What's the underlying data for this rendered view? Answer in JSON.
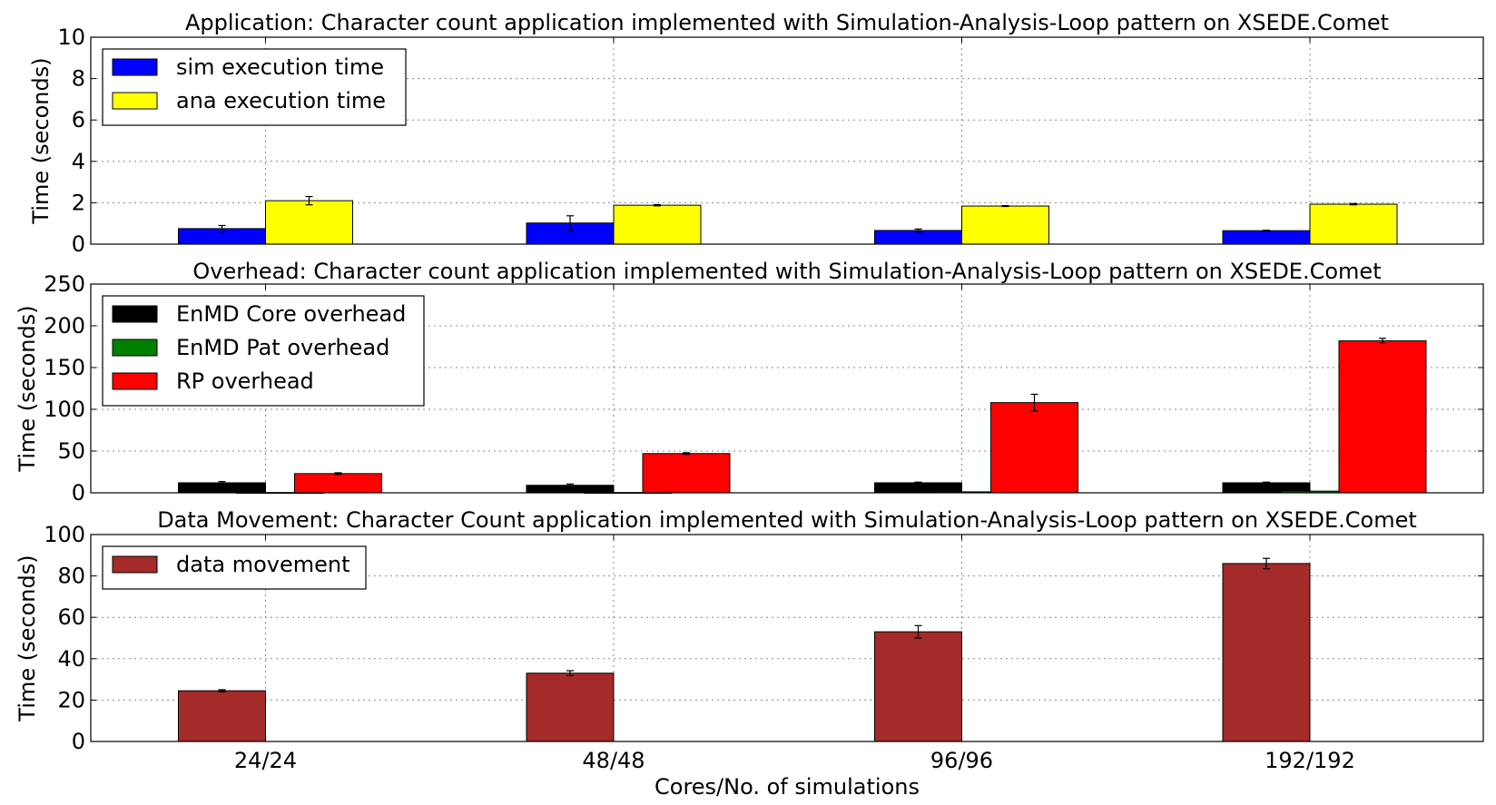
{
  "chart_data": [
    {
      "type": "bar",
      "title": "Application: Character count application implemented with Simulation-Analysis-Loop pattern on XSEDE.Comet",
      "xlabel": "",
      "ylabel": "Time (seconds)",
      "ylim": [
        0,
        10
      ],
      "yticks": [
        0,
        2,
        4,
        6,
        8,
        10
      ],
      "grid": true,
      "legend_position": "top-left",
      "categories": [
        "24/24",
        "48/48",
        "96/96",
        "192/192"
      ],
      "series": [
        {
          "name": "sim execution time",
          "color": "#0000ff",
          "values": [
            0.75,
            1.02,
            0.66,
            0.65
          ],
          "errors": [
            0.15,
            0.35,
            0.07,
            0.02
          ]
        },
        {
          "name": "ana execution time",
          "color": "#ffff00",
          "values": [
            2.1,
            1.88,
            1.84,
            1.93
          ],
          "errors": [
            0.2,
            0.03,
            0.02,
            0.03
          ]
        }
      ]
    },
    {
      "type": "bar",
      "title": "Overhead: Character count application implemented with Simulation-Analysis-Loop pattern on XSEDE.Comet",
      "xlabel": "",
      "ylabel": "Time (seconds)",
      "ylim": [
        0,
        250
      ],
      "yticks": [
        0,
        50,
        100,
        150,
        200,
        250
      ],
      "grid": true,
      "legend_position": "top-left",
      "categories": [
        "24/24",
        "48/48",
        "96/96",
        "192/192"
      ],
      "series": [
        {
          "name": "EnMD Core overhead",
          "color": "#000000",
          "values": [
            12,
            9,
            12,
            12
          ],
          "errors": [
            1.5,
            1.5,
            0.8,
            0.8
          ]
        },
        {
          "name": "EnMD Pat overhead",
          "color": "#008000",
          "values": [
            0.3,
            0.3,
            1.2,
            2.0
          ],
          "errors": [
            0,
            0,
            0,
            0
          ]
        },
        {
          "name": "RP overhead",
          "color": "#ff0000",
          "values": [
            23,
            47,
            108,
            182
          ],
          "errors": [
            1,
            1,
            10,
            3
          ]
        }
      ]
    },
    {
      "type": "bar",
      "title": "Data Movement: Character Count application implemented with Simulation-Analysis-Loop pattern on XSEDE.Comet",
      "xlabel": "Cores/No. of simulations",
      "ylabel": "Time (seconds)",
      "ylim": [
        0,
        100
      ],
      "yticks": [
        0,
        20,
        40,
        60,
        80,
        100
      ],
      "grid": true,
      "legend_position": "top-left",
      "categories": [
        "24/24",
        "48/48",
        "96/96",
        "192/192"
      ],
      "series": [
        {
          "name": "data movement",
          "color": "#a52a2a",
          "values": [
            24.5,
            33,
            53,
            86
          ],
          "errors": [
            0.5,
            1.2,
            3,
            2.5
          ]
        }
      ]
    }
  ]
}
